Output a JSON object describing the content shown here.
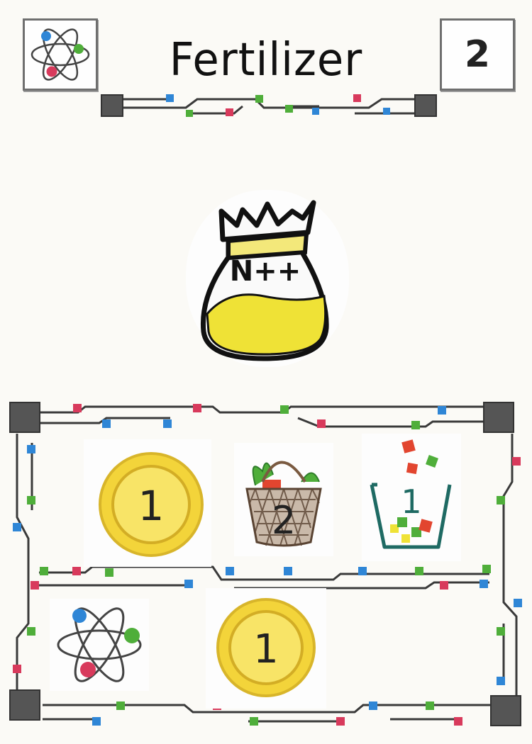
{
  "card": {
    "title": "Fertilizer",
    "cost": "2",
    "type_icon": "atom-icon",
    "illustration": {
      "icon": "fertilizer-bag-icon",
      "label": "N++"
    },
    "effects": {
      "row1": [
        {
          "icon": "coin-icon",
          "value": "1"
        },
        {
          "icon": "basket-icon",
          "value": "2"
        },
        {
          "icon": "waste-bin-icon",
          "value": "1"
        }
      ],
      "row2": [
        {
          "icon": "atom-icon"
        },
        {
          "icon": "coin-icon",
          "value": "1"
        }
      ]
    }
  },
  "colors": {
    "trace": "#3a3a3a",
    "node_blue": "#2f86d6",
    "node_green": "#4fae3a",
    "node_red": "#d83a5c",
    "coin_yellow": "#f5dc3c",
    "bag_yellow": "#efe236"
  }
}
